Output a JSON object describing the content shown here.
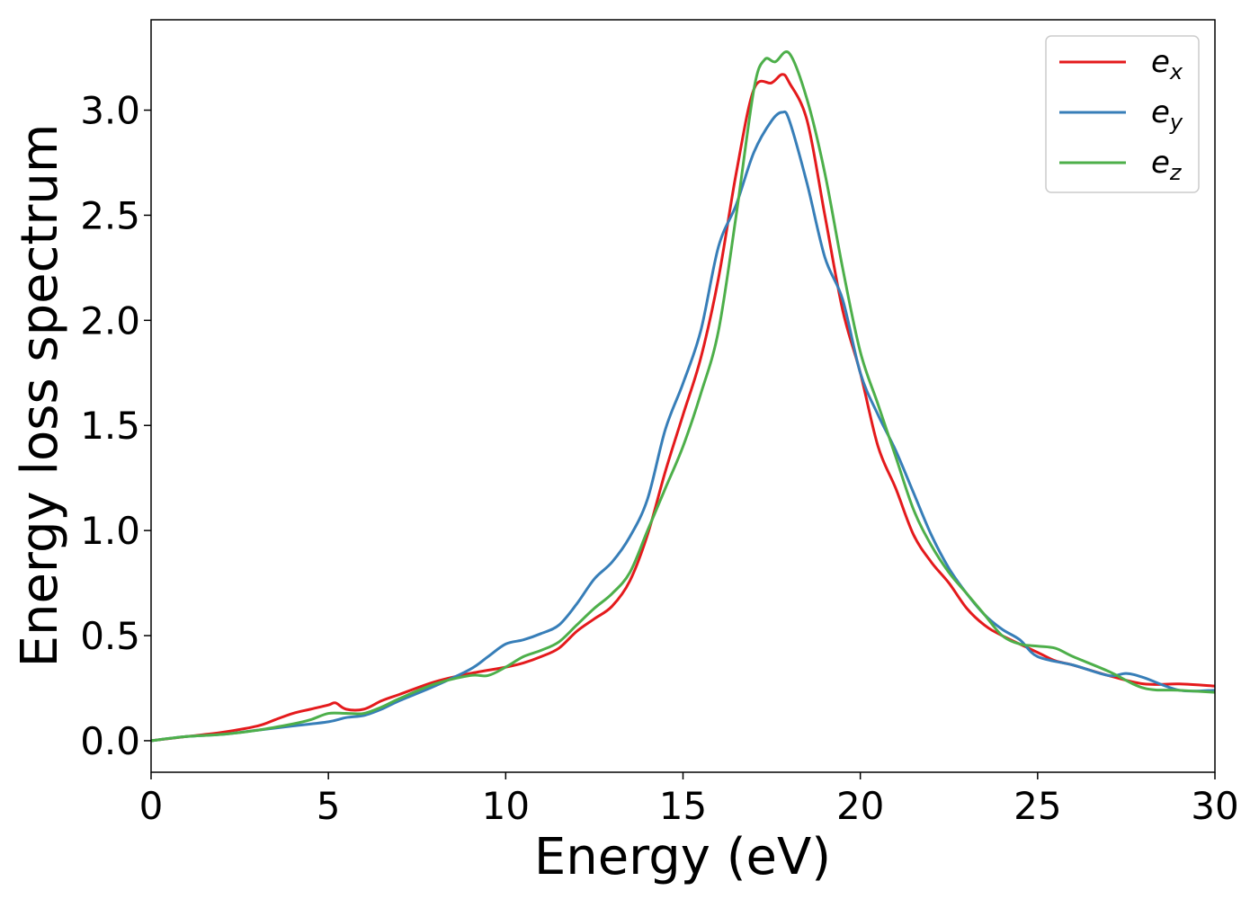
{
  "chart_data": {
    "type": "line",
    "title": "",
    "xlabel": "Energy (eV)",
    "ylabel": "Energy loss spectrum",
    "xlim": [
      0,
      30
    ],
    "ylim": [
      -0.15,
      3.43
    ],
    "xticks": [
      0,
      5,
      10,
      15,
      20,
      25,
      30
    ],
    "xtick_labels": [
      "0",
      "5",
      "10",
      "15",
      "20",
      "25",
      "30"
    ],
    "yticks": [
      0.0,
      0.5,
      1.0,
      1.5,
      2.0,
      2.5,
      3.0
    ],
    "ytick_labels": [
      "0.0",
      "0.5",
      "1.0",
      "1.5",
      "2.0",
      "2.5",
      "3.0"
    ],
    "grid": false,
    "legend_position": "top-right",
    "series": [
      {
        "name": "e_x",
        "label_main": "e",
        "label_sub": "x",
        "color": "#e41a1c",
        "x": [
          0,
          1,
          2,
          3,
          3.5,
          4,
          4.5,
          5,
          5.2,
          5.5,
          6,
          6.5,
          7,
          8,
          9,
          10,
          10.5,
          11,
          11.5,
          12,
          12.5,
          13,
          13.5,
          14,
          14.5,
          15,
          15.5,
          16,
          16.5,
          17,
          17.5,
          17.8,
          18,
          18.5,
          19,
          19.5,
          20,
          20.5,
          21,
          21.5,
          22,
          22.5,
          23,
          23.5,
          24,
          25,
          25.5,
          26,
          27,
          28,
          29,
          30
        ],
        "y": [
          0.0,
          0.02,
          0.04,
          0.07,
          0.1,
          0.13,
          0.15,
          0.17,
          0.18,
          0.15,
          0.15,
          0.19,
          0.22,
          0.28,
          0.32,
          0.35,
          0.37,
          0.4,
          0.44,
          0.52,
          0.58,
          0.64,
          0.76,
          0.98,
          1.28,
          1.55,
          1.82,
          2.2,
          2.7,
          3.1,
          3.13,
          3.17,
          3.13,
          2.95,
          2.5,
          2.05,
          1.75,
          1.4,
          1.2,
          0.98,
          0.85,
          0.75,
          0.63,
          0.55,
          0.5,
          0.42,
          0.38,
          0.36,
          0.31,
          0.27,
          0.27,
          0.26
        ]
      },
      {
        "name": "e_y",
        "label_main": "e",
        "label_sub": "y",
        "color": "#377eb8",
        "x": [
          0,
          1,
          2,
          3,
          4,
          5,
          5.5,
          6,
          6.5,
          7,
          8,
          9,
          9.5,
          10,
          10.5,
          11,
          11.5,
          12,
          12.5,
          13,
          13.5,
          14,
          14.5,
          15,
          15.5,
          16,
          16.5,
          17,
          17.5,
          17.8,
          18,
          18.5,
          19,
          19.5,
          20,
          20.5,
          21,
          21.5,
          22,
          22.5,
          23,
          23.5,
          24,
          24.5,
          25,
          26,
          27,
          27.5,
          28,
          29,
          30
        ],
        "y": [
          0.0,
          0.02,
          0.03,
          0.05,
          0.07,
          0.09,
          0.11,
          0.12,
          0.15,
          0.19,
          0.26,
          0.34,
          0.4,
          0.46,
          0.48,
          0.51,
          0.55,
          0.65,
          0.77,
          0.85,
          0.97,
          1.15,
          1.48,
          1.7,
          1.95,
          2.35,
          2.55,
          2.8,
          2.95,
          2.99,
          2.95,
          2.65,
          2.3,
          2.1,
          1.75,
          1.55,
          1.38,
          1.18,
          0.98,
          0.82,
          0.7,
          0.6,
          0.53,
          0.48,
          0.4,
          0.36,
          0.31,
          0.32,
          0.3,
          0.24,
          0.24
        ]
      },
      {
        "name": "e_z",
        "label_main": "e",
        "label_sub": "z",
        "color": "#4daf4a",
        "x": [
          0,
          1,
          2,
          3,
          4,
          4.5,
          5,
          5.5,
          6,
          6.5,
          7,
          8,
          9,
          9.5,
          10,
          10.5,
          11,
          11.5,
          12,
          12.5,
          13,
          13.5,
          14,
          14.5,
          15,
          15.5,
          16,
          16.5,
          17,
          17.3,
          17.6,
          18,
          18.5,
          19,
          19.5,
          20,
          20.5,
          21,
          21.5,
          22,
          22.5,
          23,
          23.5,
          24,
          24.5,
          25,
          25.5,
          26,
          27,
          28,
          29,
          30
        ],
        "y": [
          0.0,
          0.02,
          0.03,
          0.05,
          0.08,
          0.1,
          0.13,
          0.13,
          0.13,
          0.16,
          0.2,
          0.27,
          0.31,
          0.31,
          0.35,
          0.4,
          0.43,
          0.47,
          0.55,
          0.63,
          0.7,
          0.8,
          1.0,
          1.2,
          1.4,
          1.65,
          1.95,
          2.5,
          3.1,
          3.24,
          3.23,
          3.27,
          3.05,
          2.7,
          2.25,
          1.85,
          1.6,
          1.35,
          1.1,
          0.93,
          0.8,
          0.7,
          0.6,
          0.5,
          0.46,
          0.45,
          0.44,
          0.4,
          0.33,
          0.25,
          0.24,
          0.23
        ]
      }
    ]
  }
}
